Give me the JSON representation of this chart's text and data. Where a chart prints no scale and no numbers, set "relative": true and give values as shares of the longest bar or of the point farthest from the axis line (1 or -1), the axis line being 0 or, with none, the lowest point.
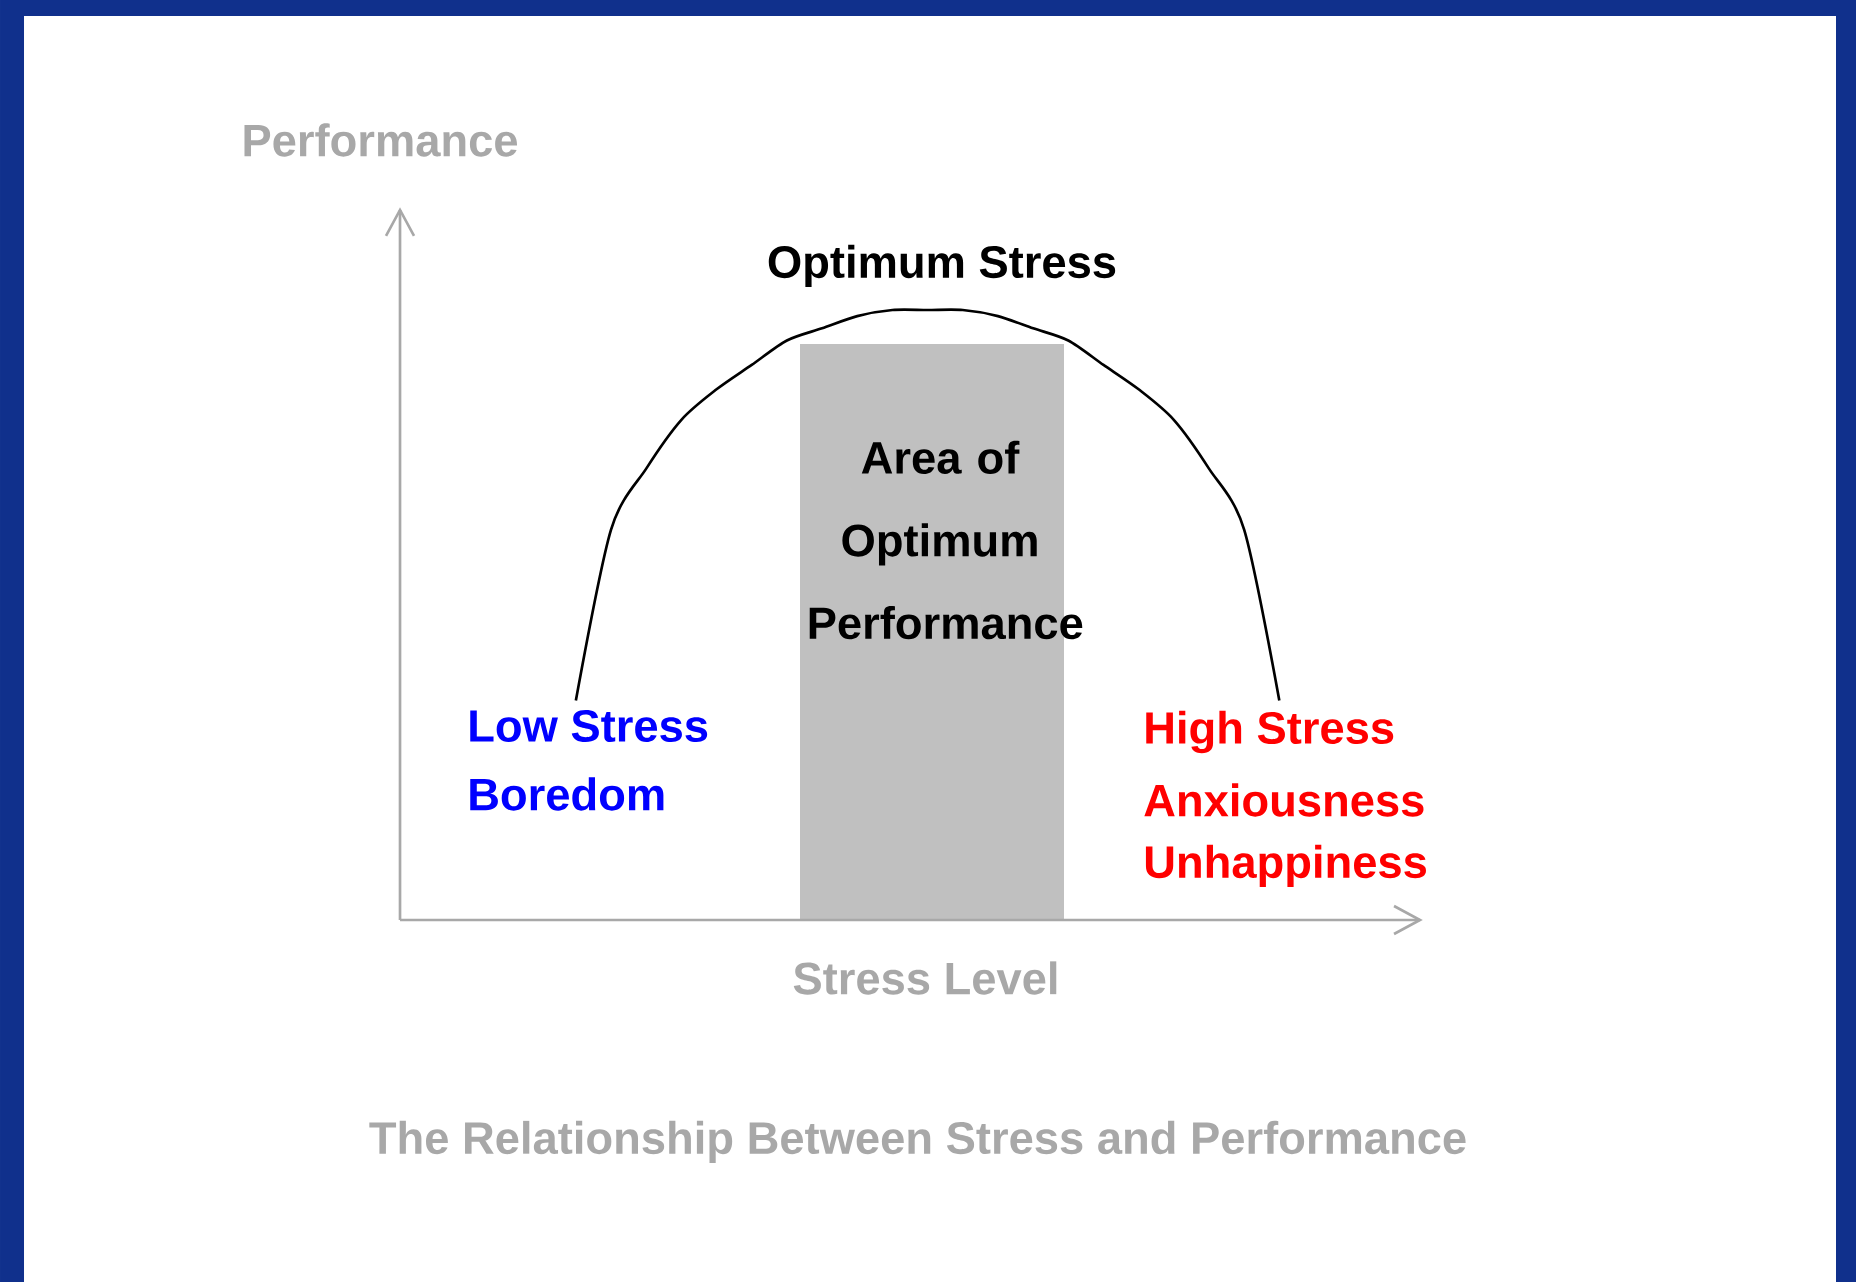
{
  "chart_data": {
    "type": "line",
    "title": "The Relationship Between Stress and Performance",
    "xlabel": "Stress Level",
    "ylabel": "Performance",
    "relative": true,
    "categories": [
      null,
      null,
      null,
      null,
      null,
      null,
      null,
      null,
      null,
      null,
      null,
      null,
      null,
      null,
      null,
      null,
      null,
      null,
      null,
      null,
      null,
      null,
      null,
      null,
      null,
      null,
      null,
      null,
      null,
      null
    ],
    "series": [
      {
        "color": "#000000",
        "values": [
          null,
          null,
          null,
          null,
          null,
          0.36,
          0.64,
          0.74,
          0.82,
          0.87,
          0.91,
          0.95,
          0.97,
          0.99,
          1.0,
          1.0,
          1.0,
          0.99,
          0.97,
          0.95,
          0.91,
          0.87,
          0.82,
          0.74,
          0.64,
          0.36,
          null,
          null,
          null,
          null
        ]
      }
    ],
    "annotations": [
      "Optimum Stress",
      "Area of Optimum Performance",
      "Low Stress",
      "Boredom",
      "High Stress",
      "Anxiousness",
      "Unhappiness"
    ]
  }
}
